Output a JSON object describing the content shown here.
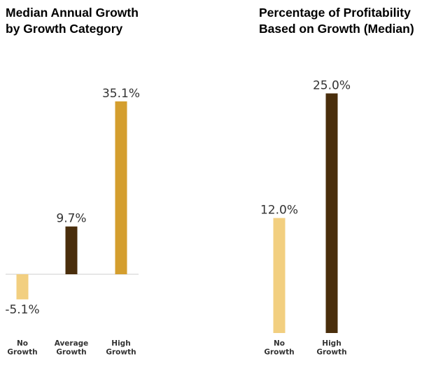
{
  "chart_data": [
    {
      "type": "bar",
      "title_lines": [
        "Median Annual Growth",
        "by Growth Category"
      ],
      "categories": [
        [
          "No",
          "Growth"
        ],
        [
          "Average",
          "Growth"
        ],
        [
          "High",
          "Growth"
        ]
      ],
      "values": [
        -5.1,
        9.7,
        35.1
      ],
      "labels": [
        "-5.1%",
        "9.7%",
        "35.1%"
      ],
      "colors": [
        "#F2CF80",
        "#4A2E0C",
        "#D49E2E"
      ],
      "axis_color": "#CCCCCC",
      "grid": false
    },
    {
      "type": "bar",
      "title_lines": [
        "Percentage of Profitability",
        "Based on Growth (Median)"
      ],
      "categories": [
        [
          "No",
          "Growth"
        ],
        [
          "High",
          "Growth"
        ]
      ],
      "values": [
        12.0,
        25.0
      ],
      "labels": [
        "12.0%",
        "25.0%"
      ],
      "colors": [
        "#F2CF80",
        "#4A2E0C"
      ],
      "grid": false
    }
  ]
}
